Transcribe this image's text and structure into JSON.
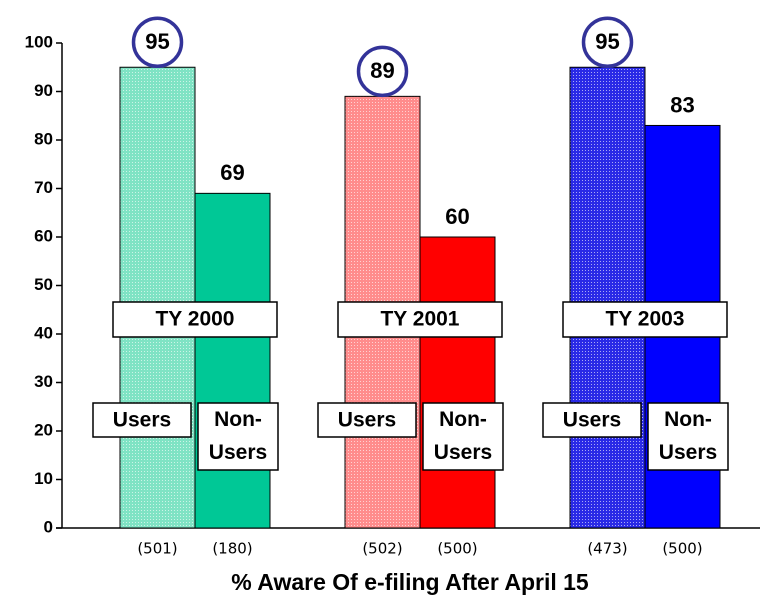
{
  "chart_data": {
    "type": "bar",
    "x_label": "% Aware Of e-filing After April 15",
    "categories": [
      "TY 2000",
      "TY 2001",
      "TY 2003"
    ],
    "series": [
      {
        "name": "Users",
        "values": [
          95,
          89,
          95
        ],
        "colors": [
          "#7fe3c4",
          "#ff8c8c",
          "#2a2ae6"
        ],
        "sample_labels": [
          "(501)",
          "(502)",
          "(473)"
        ],
        "circled": true
      },
      {
        "name": "Non-Users",
        "values": [
          69,
          60,
          83
        ],
        "colors": [
          "#00c896",
          "#ff0000",
          "#0000ff"
        ],
        "sample_labels": [
          "(180)",
          "(500)",
          "(500)"
        ],
        "circled": false
      }
    ],
    "ylim": [
      0,
      100
    ],
    "yticks": [
      0,
      10,
      20,
      30,
      40,
      50,
      60,
      70,
      80,
      90,
      100
    ]
  }
}
